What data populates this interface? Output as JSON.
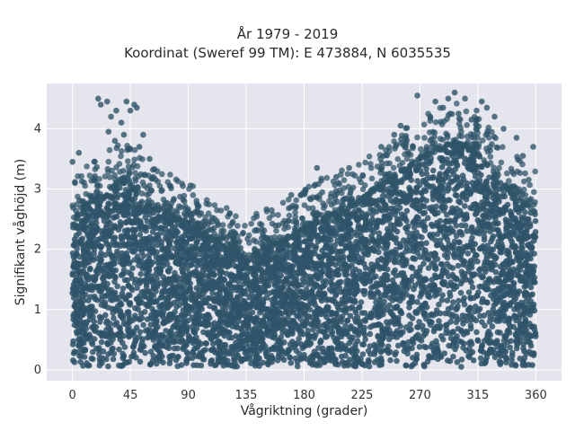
{
  "chart_data": {
    "type": "scatter",
    "title": "År 1979 - 2019",
    "subtitle": "Koordinat (Sweref 99 TM): E 473884, N 6035535",
    "xlabel": "Vågriktning (grader)",
    "ylabel": "Signifikant våghöjd (m)",
    "xlim": [
      -20,
      380
    ],
    "ylim": [
      -0.18,
      4.75
    ],
    "x_ticks": [
      0,
      45,
      90,
      135,
      180,
      225,
      270,
      315,
      360
    ],
    "y_ticks": [
      0,
      1,
      2,
      3,
      4
    ],
    "grid": true,
    "background_color": "#e5e5ee",
    "marker_color": "#2f5468",
    "envelope": {
      "x": [
        0,
        10,
        20,
        30,
        40,
        45,
        50,
        60,
        70,
        80,
        90,
        100,
        110,
        120,
        130,
        135,
        140,
        150,
        160,
        170,
        180,
        190,
        200,
        210,
        220,
        230,
        240,
        250,
        260,
        270,
        280,
        290,
        300,
        310,
        320,
        330,
        340,
        350,
        360
      ],
      "y_max_dense": [
        2.4,
        2.7,
        2.9,
        3.0,
        3.1,
        3.1,
        2.9,
        2.75,
        2.6,
        2.5,
        2.45,
        2.3,
        2.15,
        2.0,
        1.95,
        1.9,
        1.9,
        2.0,
        2.1,
        2.2,
        2.35,
        2.45,
        2.55,
        2.65,
        2.75,
        2.9,
        3.05,
        3.2,
        3.35,
        3.5,
        3.6,
        3.7,
        3.75,
        3.65,
        3.45,
        3.2,
        2.95,
        2.8,
        2.6
      ]
    },
    "extreme_points": [
      {
        "x": 20,
        "y": 4.5
      },
      {
        "x": 22,
        "y": 4.4
      },
      {
        "x": 27,
        "y": 4.45
      },
      {
        "x": 30,
        "y": 4.2
      },
      {
        "x": 34,
        "y": 4.3
      },
      {
        "x": 38,
        "y": 4.1
      },
      {
        "x": 42,
        "y": 4.45
      },
      {
        "x": 45,
        "y": 4.3
      },
      {
        "x": 48,
        "y": 4.4
      },
      {
        "x": 50,
        "y": 4.35
      },
      {
        "x": 55,
        "y": 3.9
      },
      {
        "x": 60,
        "y": 3.5
      },
      {
        "x": 28,
        "y": 3.95
      },
      {
        "x": 33,
        "y": 3.8
      },
      {
        "x": 40,
        "y": 3.9
      },
      {
        "x": 52,
        "y": 3.7
      },
      {
        "x": 268,
        "y": 4.55
      },
      {
        "x": 278,
        "y": 4.2
      },
      {
        "x": 282,
        "y": 4.45
      },
      {
        "x": 288,
        "y": 4.35
      },
      {
        "x": 292,
        "y": 4.5
      },
      {
        "x": 297,
        "y": 4.6
      },
      {
        "x": 300,
        "y": 4.25
      },
      {
        "x": 305,
        "y": 4.5
      },
      {
        "x": 310,
        "y": 4.15
      },
      {
        "x": 314,
        "y": 4.3
      },
      {
        "x": 318,
        "y": 4.45
      },
      {
        "x": 322,
        "y": 4.35
      },
      {
        "x": 328,
        "y": 4.2
      },
      {
        "x": 335,
        "y": 4.0
      },
      {
        "x": 345,
        "y": 3.85
      },
      {
        "x": 350,
        "y": 3.55
      },
      {
        "x": 358,
        "y": 3.7
      },
      {
        "x": 250,
        "y": 3.9
      },
      {
        "x": 255,
        "y": 4.05
      },
      {
        "x": 240,
        "y": 3.7
      },
      {
        "x": 190,
        "y": 3.35
      },
      {
        "x": 205,
        "y": 3.2
      },
      {
        "x": 215,
        "y": 3.35
      },
      {
        "x": 170,
        "y": 2.9
      },
      {
        "x": 100,
        "y": 2.6
      },
      {
        "x": 110,
        "y": 2.35
      },
      {
        "x": 125,
        "y": 2.2
      },
      {
        "x": 160,
        "y": 2.4
      },
      {
        "x": 0,
        "y": 3.45
      },
      {
        "x": 5,
        "y": 3.6
      },
      {
        "x": 2,
        "y": 3.1
      }
    ]
  }
}
